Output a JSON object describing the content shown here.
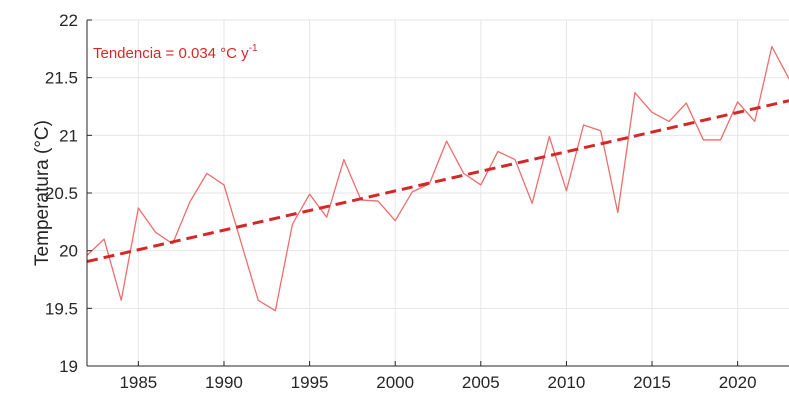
{
  "chart_data": {
    "type": "line",
    "title": "",
    "xlabel": "",
    "ylabel": "Temperatura (°C)",
    "xlim": [
      1982,
      2023
    ],
    "ylim": [
      19,
      22
    ],
    "xticks": [
      1985,
      1990,
      1995,
      2000,
      2005,
      2010,
      2015,
      2020
    ],
    "yticks": [
      19,
      19.5,
      20,
      20.5,
      21,
      21.5,
      22
    ],
    "grid": true,
    "series": [
      {
        "color": "#ee6d6d",
        "x": [
          1982,
          1983,
          1984,
          1985,
          1986,
          1987,
          1988,
          1989,
          1990,
          1991,
          1992,
          1993,
          1994,
          1995,
          1996,
          1997,
          1998,
          1999,
          2000,
          2001,
          2002,
          2003,
          2004,
          2005,
          2006,
          2007,
          2008,
          2009,
          2010,
          2011,
          2012,
          2013,
          2014,
          2015,
          2016,
          2017,
          2018,
          2019,
          2020,
          2021,
          2022,
          2023
        ],
        "y": [
          19.96,
          20.1,
          19.57,
          20.37,
          20.16,
          20.06,
          20.42,
          20.67,
          20.57,
          20.07,
          19.57,
          19.48,
          20.23,
          20.49,
          20.29,
          20.79,
          20.44,
          20.43,
          20.26,
          20.51,
          20.58,
          20.95,
          20.67,
          20.57,
          20.86,
          20.79,
          20.41,
          20.99,
          20.52,
          21.09,
          21.04,
          20.33,
          21.37,
          21.2,
          21.12,
          21.28,
          20.96,
          20.96,
          21.29,
          21.12,
          21.77,
          21.49
        ]
      }
    ],
    "trend": {
      "label_prefix": "Tendencia = 0.034 °C y",
      "label_superscript": "-1",
      "color": "#d62728",
      "x": [
        1982,
        2023
      ],
      "y": [
        19.906,
        21.3
      ]
    }
  }
}
